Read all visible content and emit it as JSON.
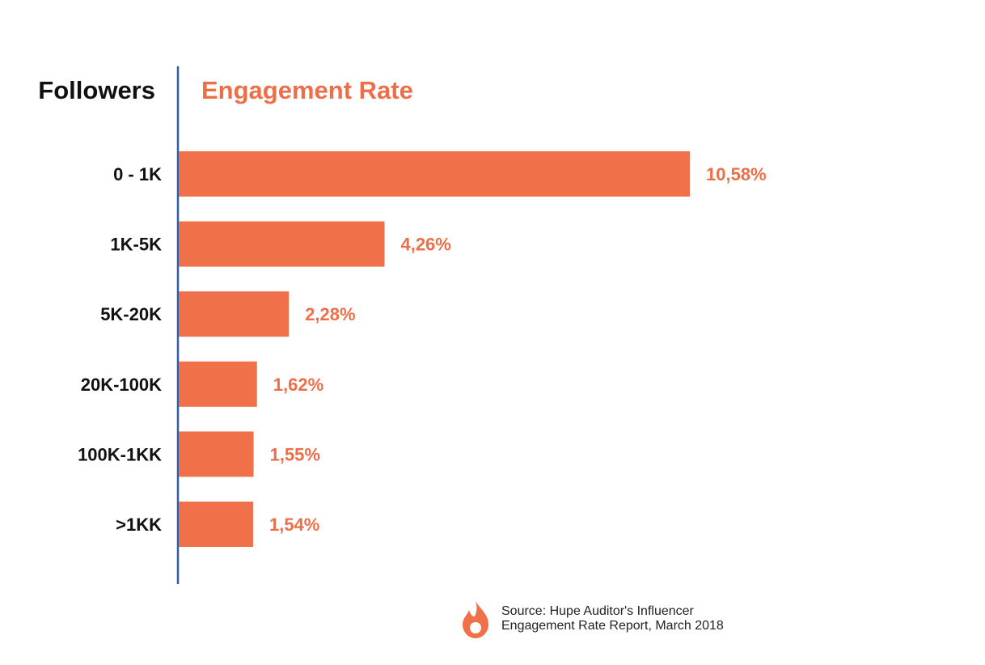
{
  "chart_data": {
    "type": "bar",
    "orientation": "horizontal",
    "xlabel": "Engagement Rate",
    "ylabel": "Followers",
    "categories": [
      "0 - 1K",
      "1K-5K",
      "5K-20K",
      "20K-100K",
      "100K-1KK",
      ">1KK"
    ],
    "values": [
      10.58,
      4.26,
      2.28,
      1.62,
      1.55,
      1.54
    ],
    "value_labels": [
      "10,58%",
      "4,26%",
      "2,28%",
      "1,62%",
      "1,55%",
      "1,54%"
    ],
    "unit": "%",
    "xlim": [
      0,
      10.58
    ],
    "grid": false,
    "legend": "none"
  },
  "colors": {
    "bar": "#F0704A",
    "value_text": "#EE6E47",
    "axis_title_right": "#EE6E47",
    "axis_line": "#2C5FA8",
    "text": "#111111"
  },
  "source": {
    "icon": "flame-icon",
    "line1": "Source: Hupe Auditor's Influencer",
    "line2": "Engagement Rate Report, March 2018"
  }
}
